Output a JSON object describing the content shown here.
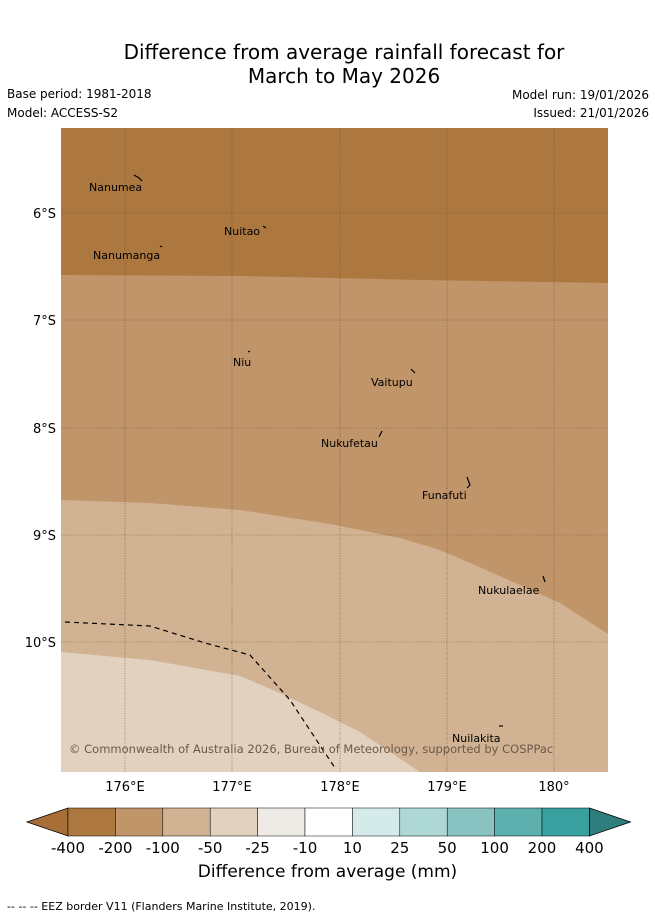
{
  "header": {
    "title_line1": "Difference from average rainfall forecast for",
    "title_line2": "March to May 2026",
    "base_period": "Base period: 1981-2018",
    "model": "Model: ACCESS-S2",
    "model_run": "Model run: 19/01/2026",
    "issued": "Issued: 21/01/2026"
  },
  "map": {
    "copyright": "© Commonwealth of Australia 2026, Bureau of Meteorology, supported by COSPPac",
    "lat_ticks": [
      "6°S",
      "7°S",
      "8°S",
      "9°S",
      "10°S"
    ],
    "lon_ticks": [
      "176°E",
      "177°E",
      "178°E",
      "179°E",
      "180°"
    ],
    "islands": [
      {
        "name": "Nanumea"
      },
      {
        "name": "Nuitao"
      },
      {
        "name": "Nanumanga"
      },
      {
        "name": "Niu"
      },
      {
        "name": "Vaitupu"
      },
      {
        "name": "Nukufetau"
      },
      {
        "name": "Funafuti"
      },
      {
        "name": "Nukulaelae"
      },
      {
        "name": "Nuilakita"
      }
    ]
  },
  "legend": {
    "title": "Difference from average (mm)",
    "tick_labels": [
      "-400",
      "-200",
      "-100",
      "-50",
      "-25",
      "-10",
      "10",
      "25",
      "50",
      "100",
      "200",
      "400"
    ],
    "colors": [
      "#A86E37",
      "#AD7840",
      "#C0956A",
      "#D1B292",
      "#E3D1BF",
      "#EEEAE6",
      "#FFFFFF",
      "#D4EBEA",
      "#AED8D6",
      "#88C3C1",
      "#5EB0AE",
      "#38A09E",
      "#2E7E7E"
    ]
  },
  "footnote": "-- -- -- EEZ border V11 (Flanders Marine Institute, 2019)."
}
